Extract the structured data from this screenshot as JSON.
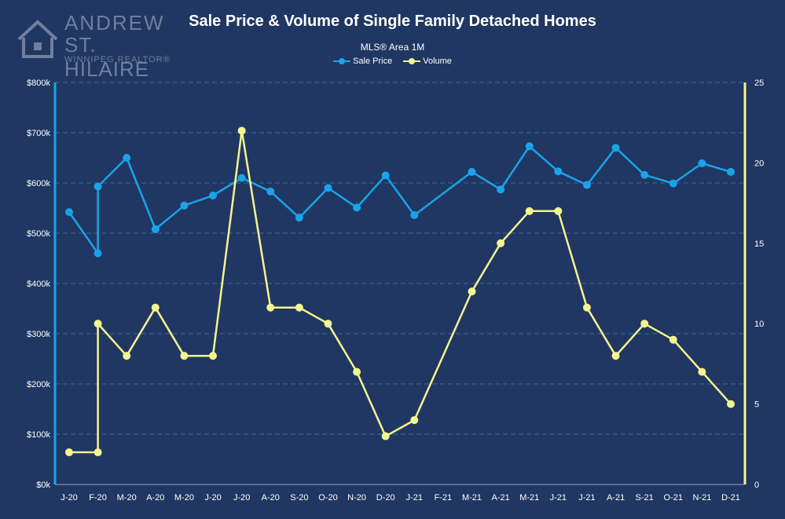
{
  "logo": {
    "line1": "ANDREW",
    "line2": "ST. HILAIRE",
    "line3": "WINNIPEG REALTOR®",
    "icon": "house-icon",
    "color": "#6f7f9c"
  },
  "chart_data": {
    "type": "line",
    "title": "Sale Price & Volume of Single Family Detached Homes",
    "subtitle": "MLS® Area 1M",
    "legend_position": "top-center",
    "grid": true,
    "background": "#1f3762",
    "categories": [
      "J-20",
      "F-20",
      "M-20",
      "A-20",
      "M-20",
      "J-20",
      "J-20",
      "A-20",
      "S-20",
      "O-20",
      "N-20",
      "D-20",
      "J-21",
      "F-21",
      "M-21",
      "A-21",
      "M-21",
      "J-21",
      "J-21",
      "A-21",
      "S-21",
      "O-21",
      "N-21",
      "D-21"
    ],
    "series": [
      {
        "name": "Sale Price",
        "axis": "left",
        "color": "#1aa3e8",
        "values": [
          542000,
          593000,
          650000,
          508000,
          555000,
          575000,
          610000,
          583000,
          531000,
          590000,
          551000,
          615000,
          536000,
          null,
          622000,
          587000,
          673000,
          623000,
          596000,
          670000,
          616000,
          599000,
          639000,
          622000
        ],
        "extra_points": [
          {
            "x": "F-20",
            "y": 460000
          }
        ]
      },
      {
        "name": "Volume",
        "axis": "right",
        "color": "#f6f48e",
        "values": [
          2,
          10,
          8,
          11,
          8,
          8,
          22,
          11,
          11,
          10,
          7,
          3,
          4,
          null,
          12,
          15,
          17,
          17,
          11,
          8,
          10,
          9,
          7,
          5
        ],
        "extra_points": [
          {
            "x": "F-20",
            "y": 2
          }
        ]
      }
    ],
    "y_left": {
      "min": 0,
      "max": 800000,
      "step": 100000,
      "tick_labels": [
        "$0k",
        "$100k",
        "$200k",
        "$300k",
        "$400k",
        "$500k",
        "$600k",
        "$700k",
        "$800k"
      ],
      "axis_color": "#1aa3e8"
    },
    "y_right": {
      "min": 0,
      "max": 25,
      "step": 5,
      "tick_labels": [
        "0",
        "5",
        "10",
        "15",
        "20",
        "25"
      ],
      "axis_color": "#f6f48e"
    }
  }
}
